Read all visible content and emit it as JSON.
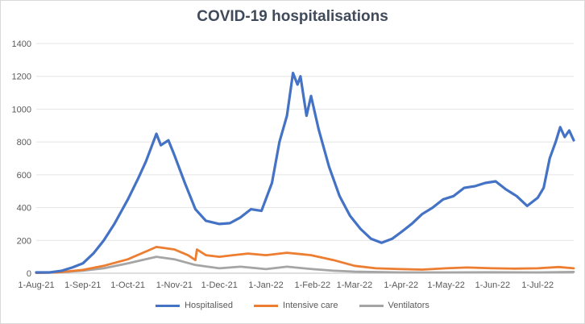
{
  "chart_data": {
    "type": "line",
    "title": "COVID-19 hospitalisations",
    "xlabel": "",
    "ylabel": "",
    "ylim": [
      0,
      1400
    ],
    "yticks": [
      "0",
      "200",
      "400",
      "600",
      "800",
      "1000",
      "1200",
      "1400"
    ],
    "xticks": [
      {
        "date": "2021-08-01",
        "label": "1-Aug-21"
      },
      {
        "date": "2021-09-01",
        "label": "1-Sep-21"
      },
      {
        "date": "2021-10-01",
        "label": "1-Oct-21"
      },
      {
        "date": "2021-11-01",
        "label": "1-Nov-21"
      },
      {
        "date": "2021-12-01",
        "label": "1-Dec-21"
      },
      {
        "date": "2022-01-01",
        "label": "1-Jan-22"
      },
      {
        "date": "2022-02-01",
        "label": "1-Feb-22"
      },
      {
        "date": "2022-03-01",
        "label": "1-Mar-22"
      },
      {
        "date": "2022-04-01",
        "label": "1-Apr-22"
      },
      {
        "date": "2022-05-01",
        "label": "1-May-22"
      },
      {
        "date": "2022-06-01",
        "label": "1-Jun-22"
      },
      {
        "date": "2022-07-01",
        "label": "1-Jul-22"
      }
    ],
    "xlim": [
      "2021-08-01",
      "2022-07-25"
    ],
    "grid": true,
    "legend_position": "bottom",
    "series": [
      {
        "name": "Hospitalised",
        "color": "#4472c4",
        "points": [
          [
            "2021-08-01",
            5
          ],
          [
            "2021-08-10",
            5
          ],
          [
            "2021-08-18",
            15
          ],
          [
            "2021-08-25",
            35
          ],
          [
            "2021-09-01",
            60
          ],
          [
            "2021-09-08",
            120
          ],
          [
            "2021-09-15",
            200
          ],
          [
            "2021-09-22",
            300
          ],
          [
            "2021-10-01",
            450
          ],
          [
            "2021-10-08",
            580
          ],
          [
            "2021-10-13",
            680
          ],
          [
            "2021-10-18",
            800
          ],
          [
            "2021-10-20",
            850
          ],
          [
            "2021-10-23",
            780
          ],
          [
            "2021-10-28",
            810
          ],
          [
            "2021-11-01",
            720
          ],
          [
            "2021-11-08",
            550
          ],
          [
            "2021-11-15",
            390
          ],
          [
            "2021-11-22",
            320
          ],
          [
            "2021-12-01",
            300
          ],
          [
            "2021-12-08",
            305
          ],
          [
            "2021-12-15",
            340
          ],
          [
            "2021-12-22",
            390
          ],
          [
            "2021-12-29",
            380
          ],
          [
            "2022-01-05",
            550
          ],
          [
            "2022-01-10",
            800
          ],
          [
            "2022-01-15",
            960
          ],
          [
            "2022-01-19",
            1220
          ],
          [
            "2022-01-22",
            1150
          ],
          [
            "2022-01-24",
            1200
          ],
          [
            "2022-01-28",
            960
          ],
          [
            "2022-01-31",
            1080
          ],
          [
            "2022-02-05",
            880
          ],
          [
            "2022-02-12",
            650
          ],
          [
            "2022-02-19",
            470
          ],
          [
            "2022-02-26",
            350
          ],
          [
            "2022-03-05",
            270
          ],
          [
            "2022-03-12",
            210
          ],
          [
            "2022-03-19",
            185
          ],
          [
            "2022-03-26",
            210
          ],
          [
            "2022-04-01",
            250
          ],
          [
            "2022-04-08",
            300
          ],
          [
            "2022-04-15",
            360
          ],
          [
            "2022-04-22",
            400
          ],
          [
            "2022-04-29",
            450
          ],
          [
            "2022-05-06",
            470
          ],
          [
            "2022-05-13",
            520
          ],
          [
            "2022-05-20",
            530
          ],
          [
            "2022-05-27",
            550
          ],
          [
            "2022-06-03",
            560
          ],
          [
            "2022-06-10",
            510
          ],
          [
            "2022-06-17",
            470
          ],
          [
            "2022-06-24",
            410
          ],
          [
            "2022-07-01",
            460
          ],
          [
            "2022-07-05",
            520
          ],
          [
            "2022-07-09",
            700
          ],
          [
            "2022-07-13",
            800
          ],
          [
            "2022-07-16",
            890
          ],
          [
            "2022-07-19",
            830
          ],
          [
            "2022-07-22",
            870
          ],
          [
            "2022-07-25",
            810
          ]
        ]
      },
      {
        "name": "Intensive care",
        "color": "#ed7d31",
        "points": [
          [
            "2021-08-01",
            2
          ],
          [
            "2021-08-15",
            5
          ],
          [
            "2021-09-01",
            20
          ],
          [
            "2021-09-15",
            45
          ],
          [
            "2021-10-01",
            85
          ],
          [
            "2021-10-15",
            140
          ],
          [
            "2021-10-20",
            160
          ],
          [
            "2021-11-01",
            145
          ],
          [
            "2021-11-10",
            110
          ],
          [
            "2021-11-15",
            80
          ],
          [
            "2021-11-16",
            145
          ],
          [
            "2021-11-22",
            110
          ],
          [
            "2021-12-01",
            100
          ],
          [
            "2021-12-10",
            110
          ],
          [
            "2021-12-20",
            120
          ],
          [
            "2022-01-01",
            110
          ],
          [
            "2022-01-15",
            125
          ],
          [
            "2022-01-31",
            110
          ],
          [
            "2022-02-15",
            80
          ],
          [
            "2022-03-01",
            45
          ],
          [
            "2022-03-15",
            30
          ],
          [
            "2022-04-01",
            25
          ],
          [
            "2022-04-15",
            22
          ],
          [
            "2022-05-01",
            30
          ],
          [
            "2022-05-15",
            35
          ],
          [
            "2022-06-01",
            30
          ],
          [
            "2022-06-15",
            28
          ],
          [
            "2022-07-01",
            30
          ],
          [
            "2022-07-15",
            38
          ],
          [
            "2022-07-25",
            30
          ]
        ]
      },
      {
        "name": "Ventilators",
        "color": "#a5a5a5",
        "points": [
          [
            "2021-08-01",
            2
          ],
          [
            "2021-08-15",
            5
          ],
          [
            "2021-09-01",
            15
          ],
          [
            "2021-09-15",
            30
          ],
          [
            "2021-10-01",
            60
          ],
          [
            "2021-10-15",
            90
          ],
          [
            "2021-10-20",
            100
          ],
          [
            "2021-11-01",
            85
          ],
          [
            "2021-11-15",
            50
          ],
          [
            "2021-12-01",
            30
          ],
          [
            "2021-12-15",
            40
          ],
          [
            "2022-01-01",
            25
          ],
          [
            "2022-01-15",
            40
          ],
          [
            "2022-02-01",
            25
          ],
          [
            "2022-02-15",
            15
          ],
          [
            "2022-03-01",
            10
          ],
          [
            "2022-04-01",
            5
          ],
          [
            "2022-05-01",
            5
          ],
          [
            "2022-06-01",
            6
          ],
          [
            "2022-07-01",
            5
          ],
          [
            "2022-07-25",
            8
          ]
        ]
      }
    ]
  }
}
